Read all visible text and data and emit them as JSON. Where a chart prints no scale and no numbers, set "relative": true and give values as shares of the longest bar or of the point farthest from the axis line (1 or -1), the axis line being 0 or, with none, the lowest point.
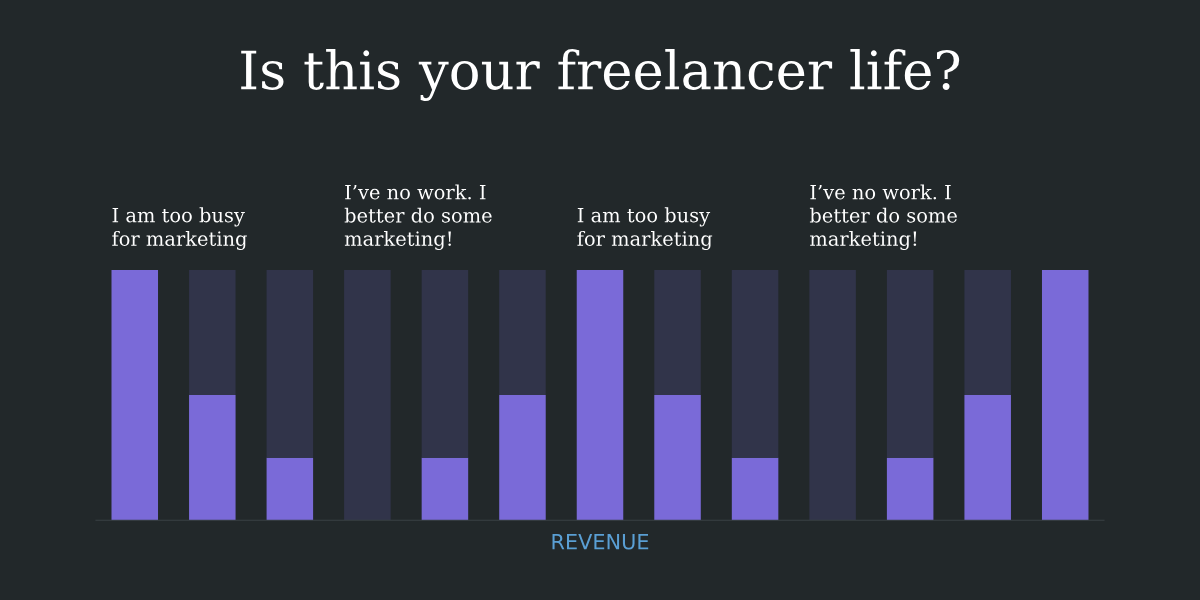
{
  "chart_data": {
    "type": "bar",
    "title": "Is this your freelancer life?",
    "xlabel": "REVENUE",
    "relative": true,
    "stacked": true,
    "categories": [
      null,
      null,
      null,
      null,
      null,
      null,
      null,
      null,
      null,
      null,
      null,
      null,
      null
    ],
    "series": [
      {
        "color": "#7a6ad8",
        "values": [
          1,
          0.5,
          0.25,
          0,
          0.25,
          0.5,
          1,
          0.5,
          0.25,
          0,
          0.25,
          0.5,
          1
        ]
      },
      {
        "color": "#31344a",
        "values": [
          0,
          0.5,
          0.75,
          1,
          0.75,
          0.5,
          0,
          0.5,
          0.75,
          1,
          0.75,
          0.5,
          0
        ]
      }
    ],
    "annotations": [
      "I am too busy\nfor marketing",
      "I’ve no work. I\nbetter do some\nmarketing!",
      "I am too busy\nfor marketing",
      "I’ve no work. I\nbetter do some\nmarketing!"
    ],
    "grid": false,
    "legend": false
  }
}
